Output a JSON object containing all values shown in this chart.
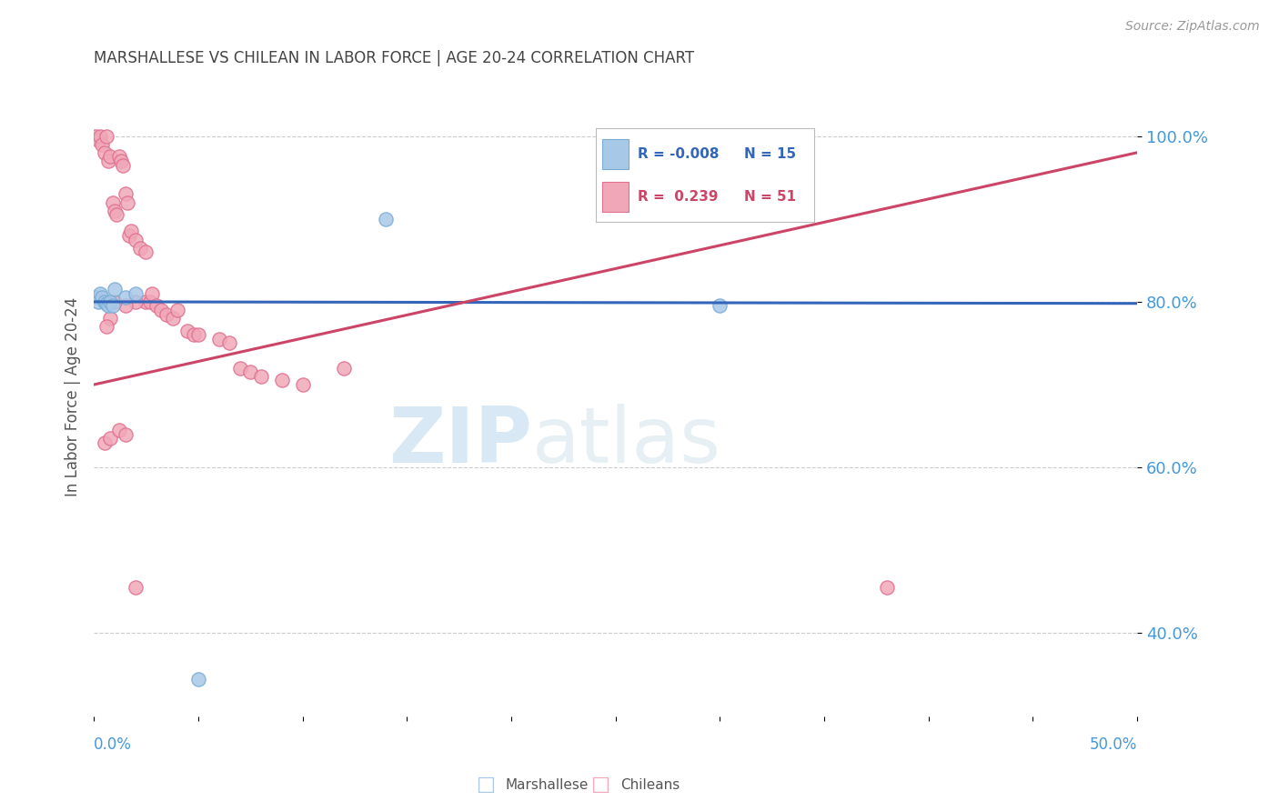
{
  "title": "MARSHALLESE VS CHILEAN IN LABOR FORCE | AGE 20-24 CORRELATION CHART",
  "source": "Source: ZipAtlas.com",
  "ylabel": "In Labor Force | Age 20-24",
  "ytick_values": [
    0.4,
    0.6,
    0.8,
    1.0
  ],
  "ytick_labels": [
    "40.0%",
    "60.0%",
    "80.0%",
    "100.0%"
  ],
  "xlim": [
    0.0,
    0.5
  ],
  "ylim": [
    0.3,
    1.07
  ],
  "watermark_zip": "ZIP",
  "watermark_atlas": "atlas",
  "legend_blue_label": "Marshallese",
  "legend_pink_label": "Chileans",
  "blue_color": "#a8c8e8",
  "blue_edge_color": "#7aadd6",
  "pink_color": "#f0a8b8",
  "pink_edge_color": "#e07090",
  "blue_line_color": "#3366bb",
  "pink_line_color": "#cc4466",
  "grid_color": "#cccccc",
  "title_color": "#444444",
  "axis_tick_color": "#4499dd",
  "blue_points_x": [
    0.001,
    0.002,
    0.003,
    0.004,
    0.005,
    0.006,
    0.007,
    0.008,
    0.009,
    0.01,
    0.015,
    0.02,
    0.14,
    0.3,
    0.05
  ],
  "blue_points_y": [
    0.805,
    0.8,
    0.81,
    0.805,
    0.8,
    0.798,
    0.795,
    0.8,
    0.795,
    0.815,
    0.805,
    0.81,
    0.9,
    0.795,
    0.345
  ],
  "pink_points_x": [
    0.001,
    0.002,
    0.003,
    0.004,
    0.005,
    0.006,
    0.007,
    0.008,
    0.009,
    0.01,
    0.011,
    0.012,
    0.013,
    0.014,
    0.015,
    0.016,
    0.017,
    0.018,
    0.02,
    0.022,
    0.025,
    0.025,
    0.027,
    0.028,
    0.03,
    0.032,
    0.035,
    0.038,
    0.04,
    0.045,
    0.048,
    0.05,
    0.06,
    0.065,
    0.07,
    0.075,
    0.08,
    0.09,
    0.1,
    0.12,
    0.02,
    0.015,
    0.01,
    0.008,
    0.006,
    0.005,
    0.008,
    0.012,
    0.015,
    0.02,
    0.38
  ],
  "pink_points_y": [
    1.0,
    0.995,
    1.0,
    0.99,
    0.98,
    1.0,
    0.97,
    0.975,
    0.92,
    0.91,
    0.905,
    0.975,
    0.97,
    0.965,
    0.93,
    0.92,
    0.88,
    0.885,
    0.875,
    0.865,
    0.86,
    0.8,
    0.8,
    0.81,
    0.795,
    0.79,
    0.785,
    0.78,
    0.79,
    0.765,
    0.76,
    0.76,
    0.755,
    0.75,
    0.72,
    0.715,
    0.71,
    0.705,
    0.7,
    0.72,
    0.8,
    0.795,
    0.8,
    0.78,
    0.77,
    0.63,
    0.635,
    0.645,
    0.64,
    0.455,
    0.455
  ],
  "blue_line_x0": 0.0,
  "blue_line_x1": 0.5,
  "blue_line_y0": 0.8,
  "blue_line_y1": 0.798,
  "pink_line_x0": 0.0,
  "pink_line_x1": 0.5,
  "pink_line_y0": 0.7,
  "pink_line_y1": 0.98
}
